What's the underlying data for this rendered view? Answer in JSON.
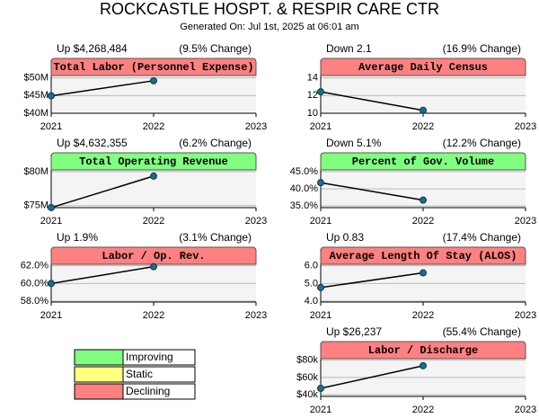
{
  "title": "ROCKCASTLE HOSPT. & RESPIR CARE CTR",
  "generated": "Generated On: Jul 1st, 2025 at 06:01 am",
  "legend": [
    {
      "label": "Improving",
      "color": "#80ff80"
    },
    {
      "label": "Static",
      "color": "#ffff80"
    },
    {
      "label": "Declining",
      "color": "#ff8080"
    }
  ],
  "chart_data": [
    {
      "type": "line",
      "title": "Total Labor (Personnel Expense)",
      "color": "#ff8080",
      "change_label": "Up $4,268,484",
      "percent_label": "(9.5% Change)",
      "x": [
        2021,
        2022
      ],
      "values": [
        44.93,
        49.2
      ],
      "xlim": [
        2021,
        2023
      ],
      "xticks": [
        2021,
        2022,
        2023
      ],
      "ylim": [
        40,
        55
      ],
      "yticks": [
        {
          "value": 40,
          "label": "$40M"
        },
        {
          "value": 45,
          "label": "$45M"
        },
        {
          "value": 50,
          "label": "$50M"
        }
      ],
      "grid": true
    },
    {
      "type": "line",
      "title": "Average Daily Census",
      "color": "#ff8080",
      "change_label": "Down 2.1",
      "percent_label": "(16.9% Change)",
      "x": [
        2021,
        2022
      ],
      "values": [
        12.43,
        10.33
      ],
      "xlim": [
        2021,
        2023
      ],
      "xticks": [
        2021,
        2022,
        2023
      ],
      "ylim": [
        10,
        16
      ],
      "yticks": [
        10,
        12,
        14
      ],
      "grid": true
    },
    {
      "type": "line",
      "title": "Total Operating Revenue",
      "color": "#80ff80",
      "change_label": "Up $4,632,355",
      "percent_label": "(6.2% Change)",
      "x": [
        2021,
        2022
      ],
      "values": [
        74.71,
        79.34
      ],
      "xlim": [
        2021,
        2023
      ],
      "xticks": [
        2021,
        2022,
        2023
      ],
      "ylim": [
        74.7,
        82.5
      ],
      "yticks": [
        {
          "value": 75,
          "label": "$75M"
        },
        {
          "value": 80,
          "label": "$80M"
        }
      ],
      "grid": true
    },
    {
      "type": "line",
      "title": "Percent of Gov. Volume",
      "color": "#80ff80",
      "change_label": "Down 5.1%",
      "percent_label": "(12.2% Change)",
      "x": [
        2021,
        2022
      ],
      "values": [
        41.8,
        36.7
      ],
      "xlim": [
        2021,
        2023
      ],
      "xticks": [
        2021,
        2022,
        2023
      ],
      "ylim": [
        34.5,
        50
      ],
      "yticks": [
        {
          "value": 35,
          "label": "35.0%"
        },
        {
          "value": 40,
          "label": "40.0%"
        },
        {
          "value": 45,
          "label": "45.0%"
        }
      ],
      "grid": true
    },
    {
      "type": "line",
      "title": "Labor / Op. Rev.",
      "color": "#ff8080",
      "change_label": "Up 1.9%",
      "percent_label": "(3.1% Change)",
      "x": [
        2021,
        2022
      ],
      "values": [
        60.0,
        61.9
      ],
      "xlim": [
        2021,
        2023
      ],
      "xticks": [
        2021,
        2022,
        2023
      ],
      "ylim": [
        57.9,
        63.9
      ],
      "yticks": [
        {
          "value": 58,
          "label": "58.0%"
        },
        {
          "value": 60,
          "label": "60.0%"
        },
        {
          "value": 62,
          "label": "62.0%"
        }
      ],
      "grid": true
    },
    {
      "type": "line",
      "title": "Average Length Of Stay (ALOS)",
      "color": "#ff8080",
      "change_label": "Up 0.83",
      "percent_label": "(17.4% Change)",
      "x": [
        2021,
        2022
      ],
      "values": [
        4.77,
        5.6
      ],
      "xlim": [
        2021,
        2023
      ],
      "xticks": [
        2021,
        2022,
        2023
      ],
      "ylim": [
        3.95,
        6.95
      ],
      "yticks": [
        {
          "value": 4,
          "label": "4.0"
        },
        {
          "value": 5,
          "label": "5.0"
        },
        {
          "value": 6,
          "label": "6.0"
        }
      ],
      "grid": true
    },
    {
      "type": "line",
      "title": "Labor / Discharge",
      "color": "#ff8080",
      "change_label": "Up $26,237",
      "percent_label": "(55.4% Change)",
      "x": [
        2021,
        2022
      ],
      "values": [
        47.359,
        73.596
      ],
      "xlim": [
        2021,
        2023
      ],
      "xticks": [
        2021,
        2022,
        2023
      ],
      "ylim": [
        38,
        99.5
      ],
      "yticks": [
        {
          "value": 40,
          "label": "$40k"
        },
        {
          "value": 60,
          "label": "$60k"
        },
        {
          "value": 80,
          "label": "$80k"
        }
      ],
      "grid": true
    }
  ]
}
